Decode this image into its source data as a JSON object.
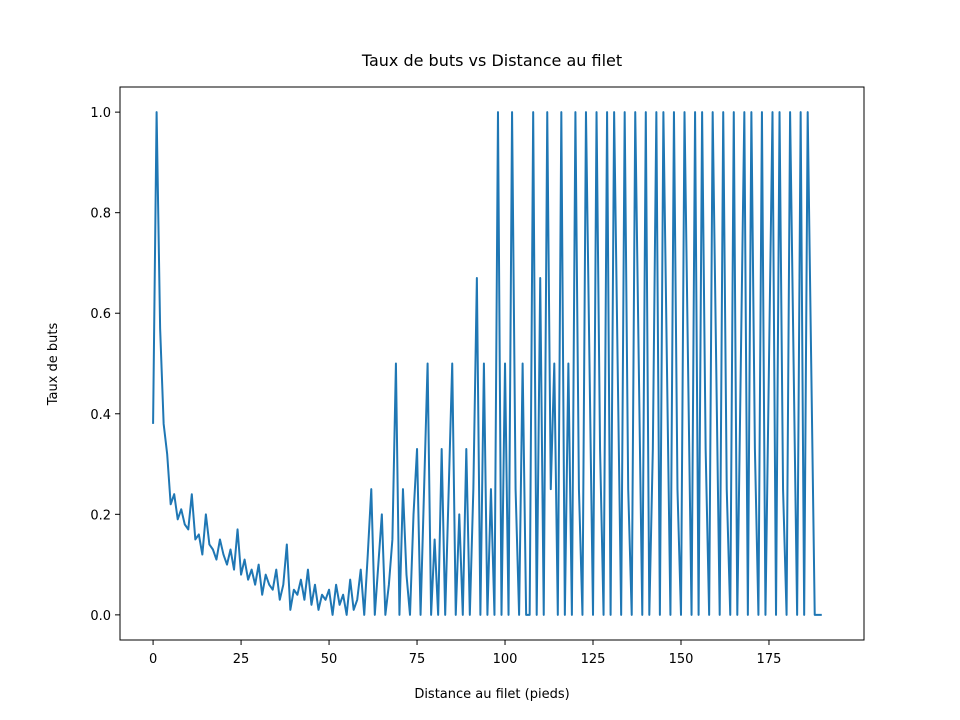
{
  "chart_data": {
    "type": "line",
    "title": "Taux de buts vs Distance au filet",
    "xlabel": "Distance au filet (pieds)",
    "ylabel": "Taux de buts",
    "color": "#1f77b4",
    "x": [
      0,
      1,
      2,
      3,
      4,
      5,
      6,
      7,
      8,
      9,
      10,
      11,
      12,
      13,
      14,
      15,
      16,
      17,
      18,
      19,
      20,
      21,
      22,
      23,
      24,
      25,
      26,
      27,
      28,
      29,
      30,
      31,
      32,
      33,
      34,
      35,
      36,
      37,
      38,
      39,
      40,
      41,
      42,
      43,
      44,
      45,
      46,
      47,
      48,
      49,
      50,
      51,
      52,
      53,
      54,
      55,
      56,
      57,
      58,
      59,
      60,
      61,
      62,
      63,
      64,
      65,
      66,
      67,
      68,
      69,
      70,
      71,
      72,
      73,
      74,
      75,
      76,
      77,
      78,
      79,
      80,
      81,
      82,
      83,
      84,
      85,
      86,
      87,
      88,
      89,
      90,
      91,
      92,
      93,
      94,
      95,
      96,
      97,
      98,
      99,
      100,
      101,
      102,
      103,
      104,
      105,
      106,
      107,
      108,
      109,
      110,
      111,
      112,
      113,
      114,
      115,
      116,
      117,
      118,
      119,
      120,
      121,
      122,
      123,
      124,
      125,
      126,
      127,
      128,
      129,
      130,
      131,
      132,
      133,
      134,
      135,
      136,
      137,
      138,
      139,
      140,
      141,
      142,
      143,
      144,
      145,
      146,
      147,
      148,
      149,
      150,
      151,
      152,
      153,
      154,
      155,
      156,
      157,
      158,
      159,
      160,
      161,
      162,
      163,
      164,
      165,
      166,
      167,
      168,
      169,
      170,
      171,
      172,
      173,
      174,
      175,
      176,
      177,
      178,
      179,
      180,
      181,
      182,
      183,
      184,
      185,
      186,
      187,
      188,
      189,
      190
    ],
    "values": [
      0.38,
      1.0,
      0.57,
      0.38,
      0.32,
      0.22,
      0.24,
      0.19,
      0.21,
      0.18,
      0.17,
      0.24,
      0.15,
      0.16,
      0.12,
      0.2,
      0.14,
      0.13,
      0.11,
      0.15,
      0.12,
      0.1,
      0.13,
      0.09,
      0.17,
      0.08,
      0.11,
      0.07,
      0.09,
      0.06,
      0.1,
      0.04,
      0.08,
      0.06,
      0.05,
      0.09,
      0.03,
      0.06,
      0.14,
      0.01,
      0.05,
      0.04,
      0.07,
      0.03,
      0.09,
      0.02,
      0.06,
      0.01,
      0.04,
      0.03,
      0.05,
      0.0,
      0.06,
      0.02,
      0.04,
      0.0,
      0.07,
      0.01,
      0.03,
      0.09,
      0.0,
      0.12,
      0.25,
      0.0,
      0.1,
      0.2,
      0.0,
      0.06,
      0.15,
      0.5,
      0.0,
      0.25,
      0.08,
      0.0,
      0.2,
      0.33,
      0.0,
      0.25,
      0.5,
      0.0,
      0.15,
      0.0,
      0.33,
      0.0,
      0.25,
      0.5,
      0.0,
      0.2,
      0.0,
      0.33,
      0.0,
      0.25,
      0.67,
      0.0,
      0.5,
      0.0,
      0.25,
      0.0,
      1.0,
      0.0,
      0.5,
      0.0,
      1.0,
      0.25,
      0.0,
      0.5,
      0.0,
      0.0,
      1.0,
      0.0,
      0.67,
      0.0,
      1.0,
      0.25,
      0.5,
      0.0,
      1.0,
      0.0,
      0.5,
      0.0,
      1.0,
      0.25,
      0.0,
      1.0,
      0.5,
      0.0,
      1.0,
      0.33,
      0.0,
      1.0,
      0.0,
      1.0,
      0.5,
      0.0,
      1.0,
      0.25,
      0.0,
      1.0,
      0.5,
      0.0,
      1.0,
      0.0,
      0.33,
      1.0,
      0.0,
      1.0,
      0.5,
      0.0,
      1.0,
      0.25,
      0.0,
      1.0,
      0.5,
      0.0,
      1.0,
      0.0,
      1.0,
      0.33,
      0.0,
      1.0,
      0.5,
      0.0,
      1.0,
      0.25,
      0.0,
      1.0,
      0.0,
      0.5,
      1.0,
      0.0,
      1.0,
      0.33,
      0.0,
      1.0,
      0.0,
      0.5,
      1.0,
      0.0,
      1.0,
      0.25,
      0.0,
      1.0,
      0.5,
      0.0,
      1.0,
      0.0,
      1.0,
      0.5,
      0.0,
      0.0,
      0.0
    ],
    "xlim": [
      -9.4,
      202
    ],
    "ylim": [
      -0.05,
      1.05
    ],
    "xticks": [
      0,
      25,
      50,
      75,
      100,
      125,
      150,
      175
    ],
    "yticks": [
      {
        "value": 0,
        "label": "0.0"
      },
      0.2,
      0.4,
      0.6,
      0.8,
      {
        "value": 1,
        "label": "1.0"
      }
    ],
    "grid": false
  }
}
